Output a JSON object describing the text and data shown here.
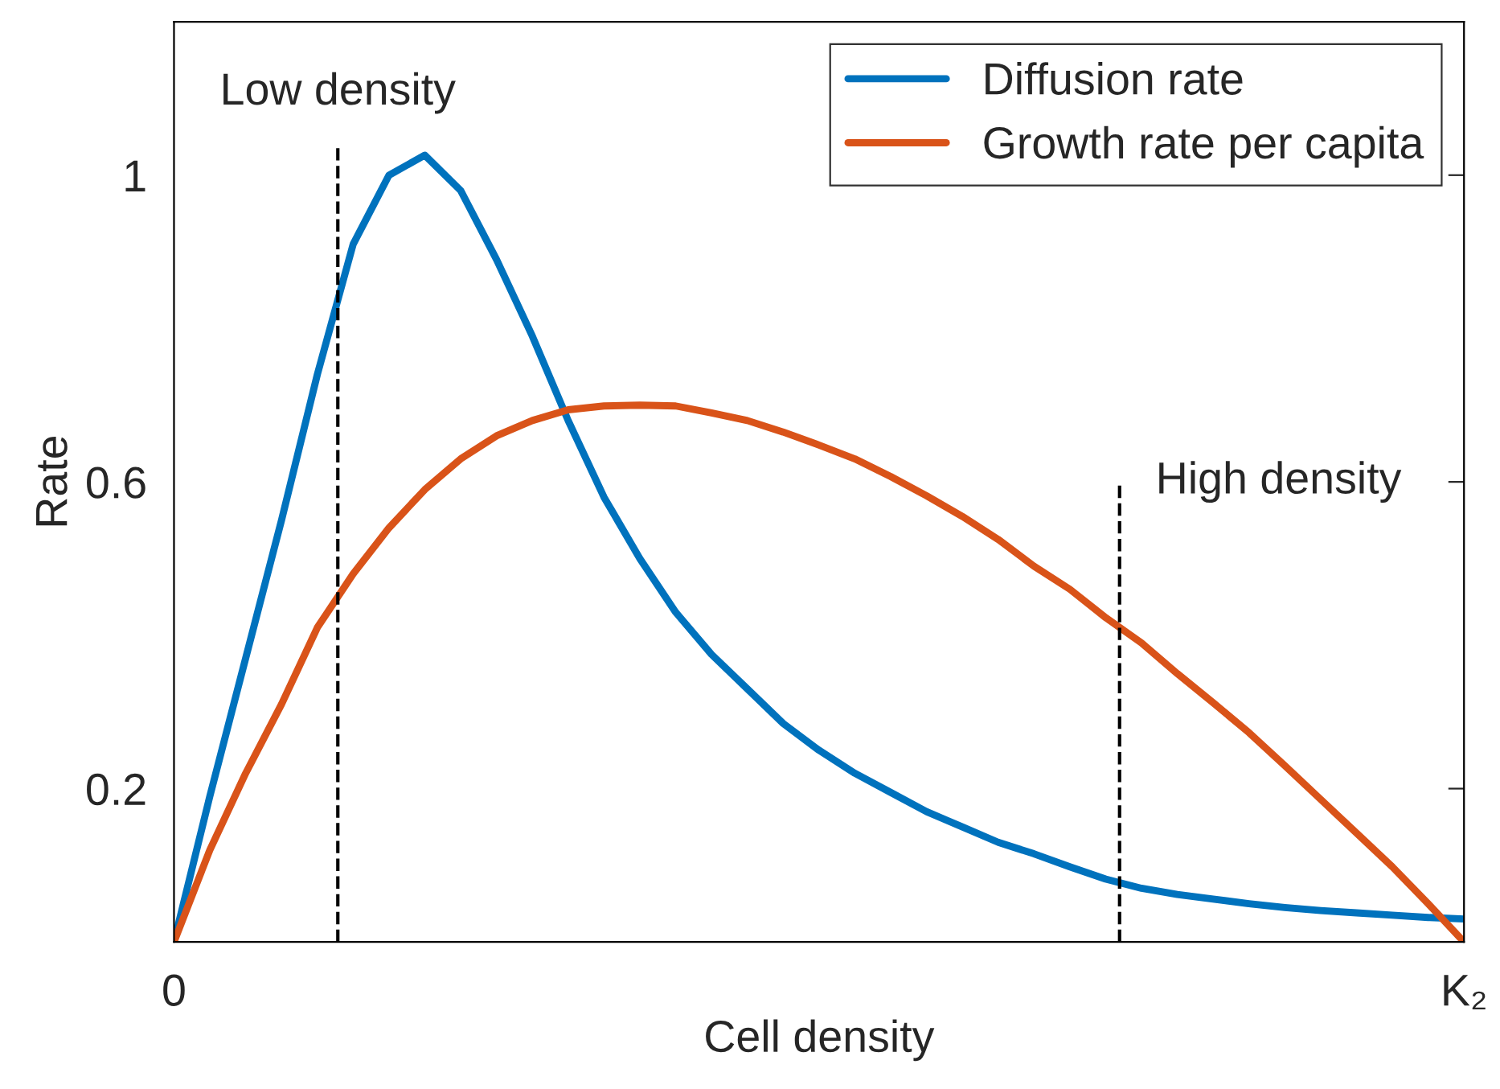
{
  "chart_data": {
    "type": "line",
    "xlabel": "Cell density",
    "ylabel": "Rate",
    "ylim": [
      0,
      1.2
    ],
    "yticks": [
      0.2,
      0.6,
      1
    ],
    "grid": false,
    "legend": "top right",
    "marker": "none",
    "line_style": "solid",
    "categories": [
      "0",
      null,
      null,
      null,
      null,
      null,
      null,
      null,
      null,
      null,
      null,
      null,
      null,
      null,
      null,
      null,
      null,
      null,
      null,
      null,
      null,
      null,
      null,
      null,
      null,
      null,
      null,
      null,
      null,
      null,
      null,
      null,
      null,
      null,
      null,
      null,
      "K₂"
    ],
    "series": [
      {
        "name": "Diffusion rate",
        "color": "#0072bd",
        "values": [
          0,
          0.19,
          0.37,
          0.55,
          0.74,
          0.91,
          1.0,
          1.026,
          0.98,
          0.89,
          0.79,
          0.68,
          0.58,
          0.5,
          0.43,
          0.375,
          0.33,
          0.285,
          0.25,
          0.22,
          0.195,
          0.17,
          0.15,
          0.13,
          0.115,
          0.098,
          0.082,
          0.07,
          0.062,
          0.056,
          0.05,
          0.045,
          0.041,
          0.038,
          0.035,
          0.032,
          0.03
        ]
      },
      {
        "name": "Growth rate per capita",
        "color": "#d95319",
        "values": [
          0,
          0.12,
          0.22,
          0.31,
          0.41,
          0.48,
          0.54,
          0.59,
          0.63,
          0.66,
          0.68,
          0.694,
          0.699,
          0.7,
          0.699,
          0.69,
          0.68,
          0.665,
          0.648,
          0.63,
          0.607,
          0.582,
          0.555,
          0.525,
          0.49,
          0.46,
          0.423,
          0.39,
          0.35,
          0.312,
          0.273,
          0.23,
          0.186,
          0.142,
          0.098,
          0.05,
          0
        ]
      }
    ],
    "annotations": [
      "Low density",
      "High density"
    ]
  }
}
